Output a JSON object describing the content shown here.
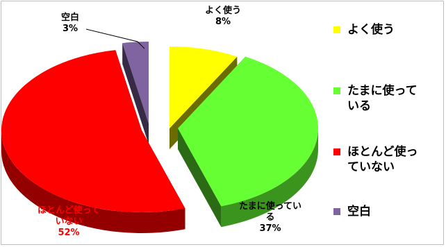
{
  "chart_data": {
    "type": "pie",
    "title": "",
    "slices": [
      {
        "label": "よく使う",
        "value": 8,
        "display": "8%",
        "color": "#FFFF00",
        "label_color": "#000000",
        "label_lines": [
          "よく使う",
          "8%"
        ]
      },
      {
        "label": "たまに使っている",
        "value": 37,
        "display": "37%",
        "color": "#66FF33",
        "label_color": "#000000",
        "label_lines": [
          "たまに使ってい",
          "る",
          "37%"
        ]
      },
      {
        "label": "ほとんど使っていない",
        "value": 52,
        "display": "52%",
        "color": "#FF0000",
        "label_color": "#FF0000",
        "label_lines": [
          "ほとんど使って",
          "いない",
          "52%"
        ]
      },
      {
        "label": "空白",
        "value": 3,
        "display": "3%",
        "color": "#8064A2",
        "label_color": "#000000",
        "label_lines": [
          "空白",
          "3%"
        ]
      }
    ],
    "legend": {
      "position": "right",
      "entries": [
        {
          "lines": [
            "よく使う"
          ],
          "color": "#FFFF00"
        },
        {
          "lines": [
            "たまに使って",
            "いる"
          ],
          "color": "#66FF33"
        },
        {
          "lines": [
            "ほとんど使っ",
            "ていない"
          ],
          "color": "#FF0000"
        },
        {
          "lines": [
            "空白"
          ],
          "color": "#8064A2"
        }
      ]
    },
    "style": "3d-exploded"
  }
}
